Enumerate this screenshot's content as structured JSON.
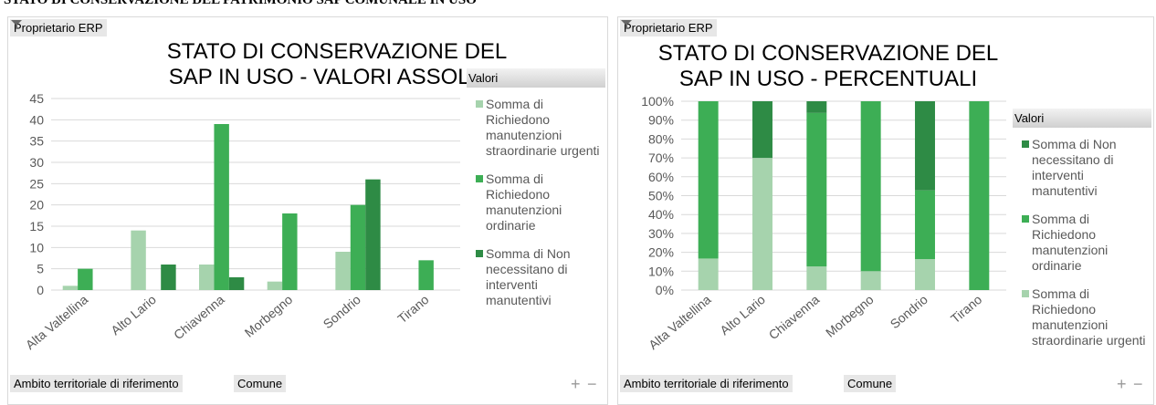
{
  "page_title": "STATO DI CONSERVAZIONE DEL PATRIMONIO SAP COMUNALE IN USO",
  "chart_data": [
    {
      "type": "bar",
      "title": "STATO DI CONSERVAZIONE DEL SAP IN USO - VALORI ASSOLUTI",
      "filter_label": "Proprietario ERP",
      "legend_title": "Valori",
      "axis_fields": [
        "Ambito territoriale di riferimento",
        "Comune"
      ],
      "zoom_buttons": [
        "+",
        "−"
      ],
      "categories": [
        "Alta Valtellina",
        "Alto Lario",
        "Chiavenna",
        "Morbegno",
        "Sondrio",
        "Tirano"
      ],
      "series": [
        {
          "name": "Somma di Richiedono manutenzioni straordinarie urgenti",
          "color": "#a6d3ad",
          "values": [
            1,
            14,
            6,
            2,
            9,
            null
          ]
        },
        {
          "name": "Somma di Richiedono manutenzioni ordinarie",
          "color": "#3dae55",
          "values": [
            5,
            null,
            39,
            18,
            20,
            7
          ]
        },
        {
          "name": "Somma di Non necessitano di interventi manutentivi",
          "color": "#2e8b45",
          "values": [
            null,
            6,
            3,
            null,
            26,
            null
          ]
        }
      ],
      "ylim": [
        0,
        45
      ],
      "yticks": [
        0,
        5,
        10,
        15,
        20,
        25,
        30,
        35,
        40,
        45
      ],
      "grid": true,
      "legend": "right"
    },
    {
      "type": "stacked_bar",
      "title": "STATO DI CONSERVAZIONE DEL SAP IN USO - PERCENTUALI",
      "filter_label": "Proprietario ERP",
      "legend_title": "Valori",
      "axis_fields": [
        "Ambito territoriale di riferimento",
        "Comune"
      ],
      "zoom_buttons": [
        "+",
        "−"
      ],
      "categories": [
        "Alta Valtellina",
        "Alto Lario",
        "Chiavenna",
        "Morbegno",
        "Sondrio",
        "Tirano"
      ],
      "series": [
        {
          "name": "Somma di Richiedono manutenzioni straordinarie urgenti",
          "color": "#a6d3ad",
          "values": [
            16.7,
            70,
            12.5,
            10,
            16.4,
            0
          ]
        },
        {
          "name": "Somma di Richiedono manutenzioni ordinarie",
          "color": "#3dae55",
          "values": [
            83.3,
            0,
            81.3,
            90,
            36.4,
            100
          ]
        },
        {
          "name": "Somma di Non necessitano di interventi manutentivi",
          "color": "#2e8b45",
          "values": [
            0,
            30,
            6.2,
            0,
            47.2,
            0
          ]
        }
      ],
      "ylim": [
        0,
        100
      ],
      "yticks": [
        {
          "value": 0,
          "label": "0%"
        },
        {
          "value": 10,
          "label": "10%"
        },
        {
          "value": 20,
          "label": "20%"
        },
        {
          "value": 30,
          "label": "30%"
        },
        {
          "value": 40,
          "label": "40%"
        },
        {
          "value": 50,
          "label": "50%"
        },
        {
          "value": 60,
          "label": "60%"
        },
        {
          "value": 70,
          "label": "70%"
        },
        {
          "value": 80,
          "label": "80%"
        },
        {
          "value": 90,
          "label": "90%"
        },
        {
          "value": 100,
          "label": "100%"
        }
      ],
      "grid": true,
      "legend": "right",
      "legend_reversed": true
    }
  ]
}
